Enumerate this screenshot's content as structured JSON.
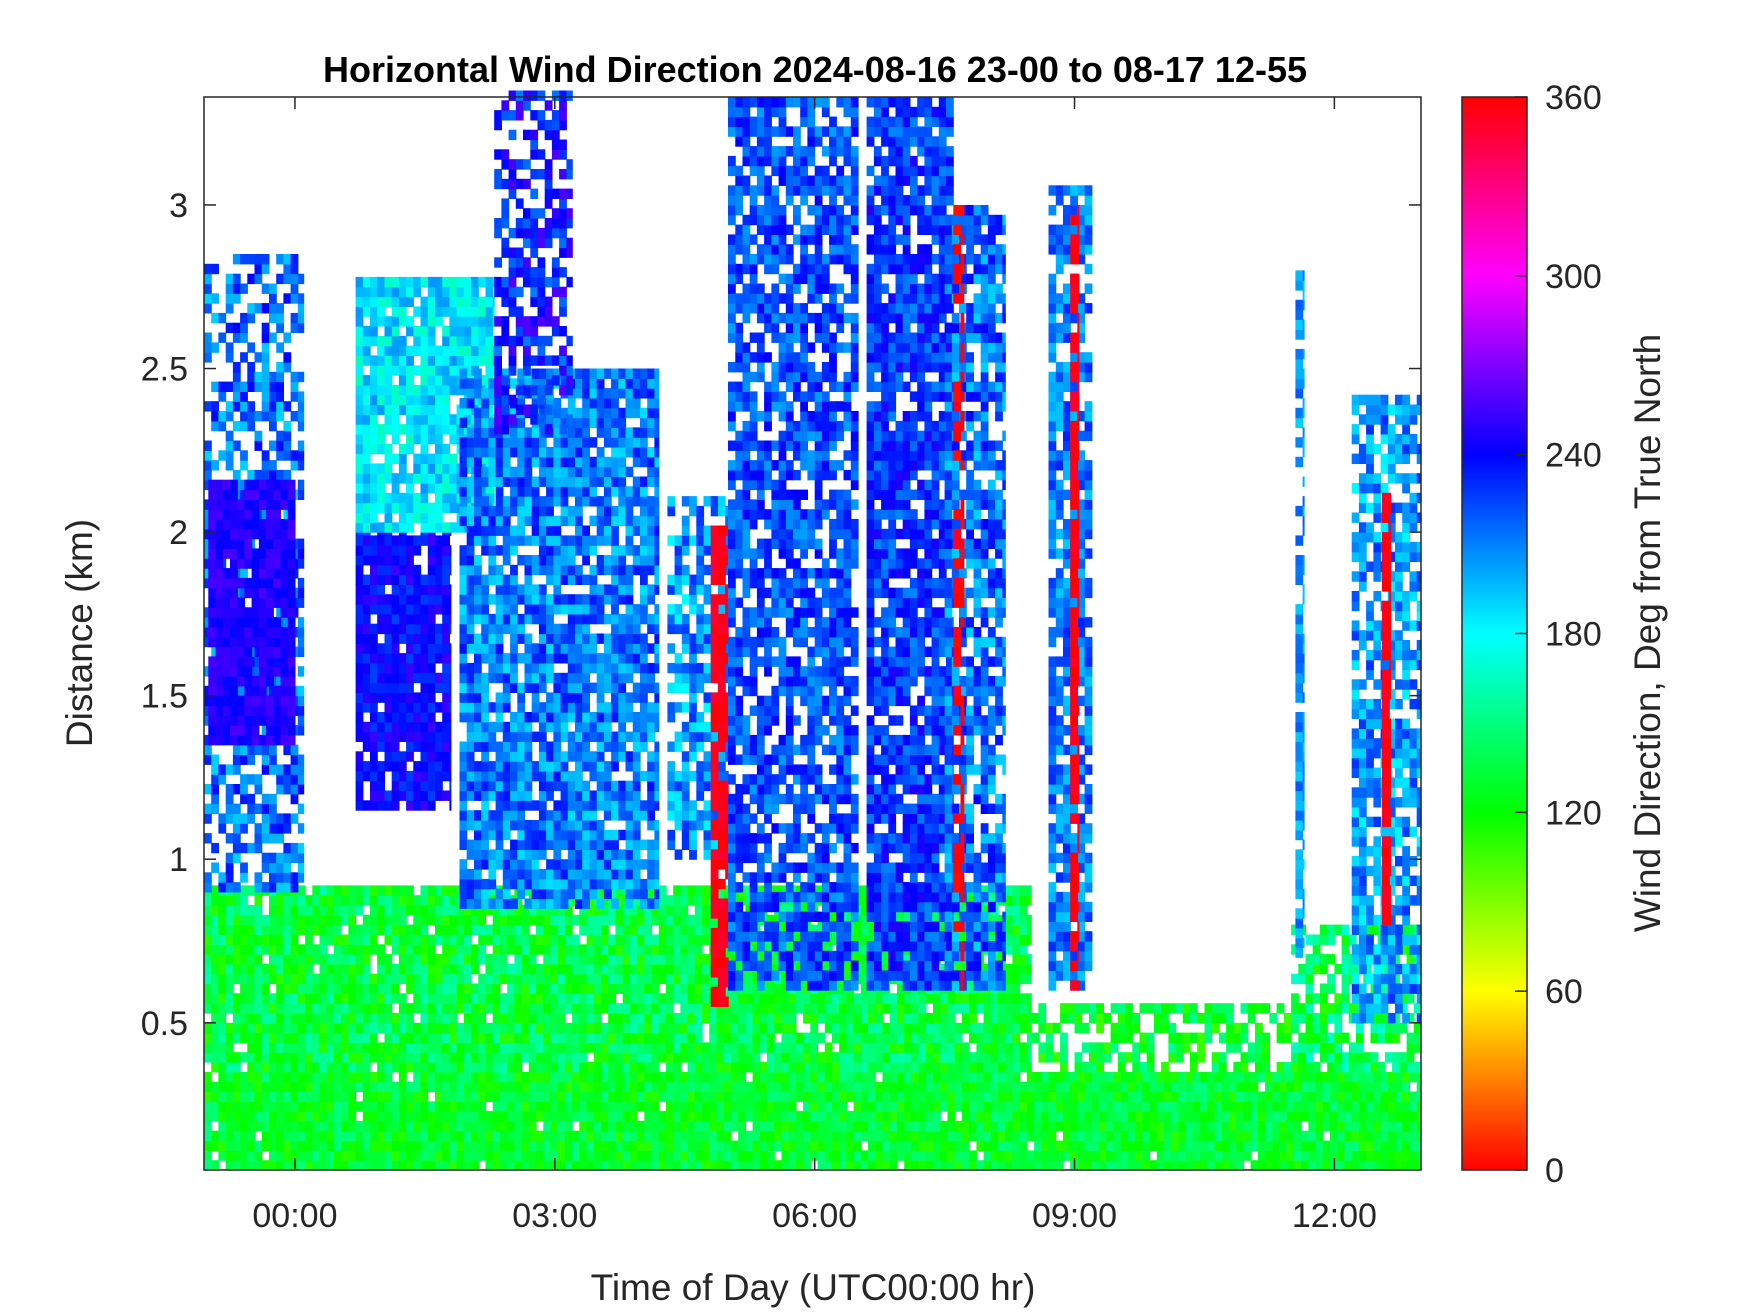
{
  "chart_data": {
    "type": "heatmap",
    "title": "Horizontal Wind Direction 2024-08-16 23-00 to 08-17 12-55",
    "xlabel": "Time of Day (UTC00:00 hr)",
    "ylabel": "Distance (km)",
    "colorbar_label": "Wind Direction, Deg from True North",
    "x_range_hours": [
      -1.05,
      13.0
    ],
    "y_range_km": [
      0.05,
      3.33
    ],
    "x_ticks": [
      {
        "value": 0,
        "label": "00:00"
      },
      {
        "value": 3,
        "label": "03:00"
      },
      {
        "value": 6,
        "label": "06:00"
      },
      {
        "value": 9,
        "label": "09:00"
      },
      {
        "value": 12,
        "label": "12:00"
      }
    ],
    "y_ticks": [
      {
        "value": 0.5,
        "label": "0.5"
      },
      {
        "value": 1,
        "label": "1"
      },
      {
        "value": 1.5,
        "label": "1.5"
      },
      {
        "value": 2,
        "label": "2"
      },
      {
        "value": 2.5,
        "label": "2.5"
      },
      {
        "value": 3,
        "label": "3"
      }
    ],
    "colorbar_range": [
      0,
      360
    ],
    "colorbar_ticks": [
      {
        "value": 0,
        "label": "0"
      },
      {
        "value": 60,
        "label": "60"
      },
      {
        "value": 120,
        "label": "120"
      },
      {
        "value": 180,
        "label": "180"
      },
      {
        "value": 240,
        "label": "240"
      },
      {
        "value": 300,
        "label": "300"
      },
      {
        "value": 360,
        "label": "360"
      }
    ],
    "colormap": "hsv",
    "grid": false,
    "regions": [
      {
        "x": [
          -1.05,
          13.0
        ],
        "y": [
          0.05,
          0.35
        ],
        "direction_deg": 130,
        "spread_deg": 20,
        "coverage": 0.98
      },
      {
        "x": [
          -1.05,
          8.5
        ],
        "y": [
          0.35,
          0.9
        ],
        "direction_deg": 135,
        "spread_deg": 25,
        "coverage": 0.95
      },
      {
        "x": [
          8.5,
          11.5
        ],
        "y": [
          0.35,
          0.55
        ],
        "direction_deg": 130,
        "spread_deg": 25,
        "coverage": 0.6
      },
      {
        "x": [
          11.5,
          13.0
        ],
        "y": [
          0.35,
          0.8
        ],
        "direction_deg": 140,
        "spread_deg": 30,
        "coverage": 0.7
      },
      {
        "x": [
          -1.05,
          0.1
        ],
        "y": [
          0.9,
          2.85
        ],
        "direction_deg": 215,
        "spread_deg": 25,
        "coverage": 0.6
      },
      {
        "x": [
          -1.0,
          0.0
        ],
        "y": [
          1.35,
          2.15
        ],
        "direction_deg": 248,
        "spread_deg": 10,
        "coverage": 0.95
      },
      {
        "x": [
          0.7,
          1.8
        ],
        "y": [
          1.15,
          2.0
        ],
        "direction_deg": 240,
        "spread_deg": 15,
        "coverage": 0.9
      },
      {
        "x": [
          0.7,
          2.3
        ],
        "y": [
          2.0,
          2.78
        ],
        "direction_deg": 185,
        "spread_deg": 20,
        "coverage": 0.9
      },
      {
        "x": [
          1.9,
          4.2
        ],
        "y": [
          0.85,
          2.5
        ],
        "direction_deg": 212,
        "spread_deg": 25,
        "coverage": 0.85
      },
      {
        "x": [
          2.3,
          3.2
        ],
        "y": [
          2.3,
          3.33
        ],
        "direction_deg": 235,
        "spread_deg": 25,
        "coverage": 0.55
      },
      {
        "x": [
          4.3,
          5.0
        ],
        "y": [
          1.0,
          2.1
        ],
        "direction_deg": 205,
        "spread_deg": 25,
        "coverage": 0.7
      },
      {
        "x": [
          4.8,
          5.0
        ],
        "y": [
          0.55,
          2.0
        ],
        "direction_deg": 355,
        "spread_deg": 6,
        "coverage": 0.8
      },
      {
        "x": [
          5.0,
          6.5
        ],
        "y": [
          0.6,
          3.33
        ],
        "direction_deg": 222,
        "spread_deg": 20,
        "coverage": 0.75
      },
      {
        "x": [
          6.6,
          7.6
        ],
        "y": [
          0.6,
          3.33
        ],
        "direction_deg": 228,
        "spread_deg": 20,
        "coverage": 0.85
      },
      {
        "x": [
          7.5,
          8.2
        ],
        "y": [
          0.6,
          3.0
        ],
        "direction_deg": 215,
        "spread_deg": 25,
        "coverage": 0.75
      },
      {
        "x": [
          7.6,
          7.72
        ],
        "y": [
          0.6,
          3.0
        ],
        "direction_deg": 358,
        "spread_deg": 6,
        "coverage": 0.5
      },
      {
        "x": [
          8.7,
          9.2
        ],
        "y": [
          0.6,
          3.05
        ],
        "direction_deg": 212,
        "spread_deg": 20,
        "coverage": 0.8
      },
      {
        "x": [
          8.95,
          9.05
        ],
        "y": [
          0.6,
          3.0
        ],
        "direction_deg": 355,
        "spread_deg": 5,
        "coverage": 0.75
      },
      {
        "x": [
          11.55,
          11.65
        ],
        "y": [
          0.7,
          2.8
        ],
        "direction_deg": 205,
        "spread_deg": 15,
        "coverage": 0.7
      },
      {
        "x": [
          12.2,
          13.0
        ],
        "y": [
          0.5,
          2.4
        ],
        "direction_deg": 205,
        "spread_deg": 25,
        "coverage": 0.7
      },
      {
        "x": [
          12.55,
          12.65
        ],
        "y": [
          0.8,
          2.1
        ],
        "direction_deg": 355,
        "spread_deg": 5,
        "coverage": 0.8
      }
    ]
  }
}
